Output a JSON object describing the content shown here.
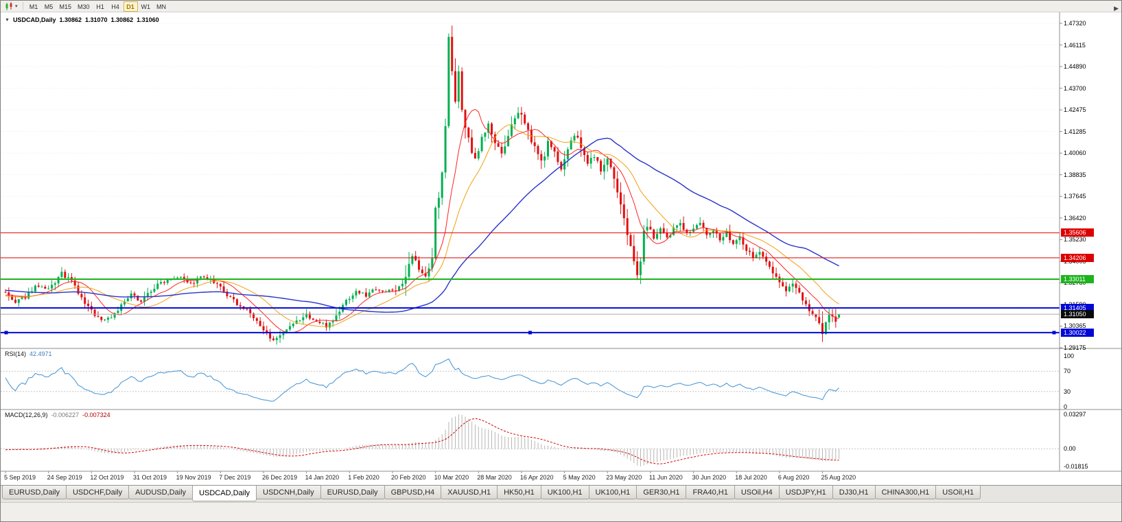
{
  "toolbar": {
    "timeframes": [
      "M1",
      "M5",
      "M15",
      "M30",
      "H1",
      "H4",
      "D1",
      "W1",
      "MN"
    ],
    "active_timeframe": "D1"
  },
  "chart_header": {
    "symbol_label": "USDCAD,Daily",
    "open": "1.30862",
    "high": "1.31070",
    "low": "1.30862",
    "close": "1.31060"
  },
  "price_axis": {
    "ticks": [
      "1.47320",
      "1.46115",
      "1.44890",
      "1.43700",
      "1.42475",
      "1.41285",
      "1.40060",
      "1.38835",
      "1.37645",
      "1.36420",
      "1.35230",
      "1.34005",
      "1.32780",
      "1.31590",
      "1.30365",
      "1.29175"
    ]
  },
  "levels": [
    {
      "price": 1.35606,
      "label": "1.35606",
      "color": "#dd0000",
      "line_width": 1,
      "badge_bg": "#dd0000",
      "handles": false
    },
    {
      "price": 1.34206,
      "label": "1.34206",
      "color": "#dd0000",
      "line_width": 1,
      "badge_bg": "#dd0000",
      "handles": false
    },
    {
      "price": 1.33011,
      "label": "1.33011",
      "color": "#1db31d",
      "line_width": 2,
      "badge_bg": "#1db31d",
      "handles": false
    },
    {
      "price": 1.31405,
      "label": "1.31405",
      "color": "#0008d6",
      "line_width": 2,
      "badge_bg": "#0008d6",
      "handles": false
    },
    {
      "price": 1.30022,
      "label": "1.30022",
      "color": "#0008d6",
      "line_width": 2,
      "badge_bg": "#0008d6",
      "handles": true
    }
  ],
  "current_price": {
    "value": 1.3105,
    "label": "1.31050",
    "badge_bg": "#0a0a0a",
    "line_color": "#aaaaaa"
  },
  "indicators": {
    "rsi": {
      "label": "RSI(14)",
      "period": 14,
      "value": "42.4971",
      "levels": [
        100,
        70,
        30,
        0
      ],
      "line_color": "#4f9ad6"
    },
    "macd": {
      "label": "MACD(12,26,9)",
      "fast": 12,
      "slow": 26,
      "signal": 9,
      "value_main": "-0.006227",
      "value_signal": "-0.007324",
      "axis": [
        "0.03297",
        "0.00",
        "-0.01815"
      ],
      "histogram_color": "#b5b5b5",
      "signal_color": "#d40000"
    }
  },
  "date_axis": {
    "bars_per_label": 13,
    "labels": [
      "5 Sep 2019",
      "24 Sep 2019",
      "12 Oct 2019",
      "31 Oct 2019",
      "19 Nov 2019",
      "7 Dec 2019",
      "26 Dec 2019",
      "14 Jan 2020",
      "1 Feb 2020",
      "20 Feb 2020",
      "10 Mar 2020",
      "28 Mar 2020",
      "16 Apr 2020",
      "5 May 2020",
      "23 May 2020",
      "11 Jun 2020",
      "30 Jun 2020",
      "18 Jul 2020",
      "6 Aug 2020",
      "25 Aug 2020"
    ]
  },
  "tabs": {
    "active_index": 3,
    "items": [
      "EURUSD,Daily",
      "USDCHF,Daily",
      "AUDUSD,Daily",
      "USDCAD,Daily",
      "USDCNH,Daily",
      "EURUSD,Daily",
      "GBPUSD,H4",
      "XAUUSD,H1",
      "HK50,H1",
      "UK100,H1",
      "UK100,H1",
      "GER30,H1",
      "FRA40,H1",
      "USOil,H4",
      "USDJPY,H1",
      "DJ30,H1",
      "CHINA300,H1",
      "USOil,H1"
    ],
    "scroll_icon": "▶"
  },
  "chart_data": {
    "type": "candlestick",
    "title": "USDCAD,Daily",
    "symbol": "USDCAD",
    "timeframe": "Daily",
    "bars_total": 253,
    "bars_per_label": 13,
    "ylim": [
      1.29175,
      1.4732
    ],
    "y_ticks": [
      1.4732,
      1.46115,
      1.4489,
      1.437,
      1.42475,
      1.41285,
      1.4006,
      1.38835,
      1.37645,
      1.3642,
      1.3523,
      1.34005,
      1.3278,
      1.3159,
      1.30365,
      1.29175
    ],
    "x_labels": [
      "5 Sep 2019",
      "24 Sep 2019",
      "12 Oct 2019",
      "31 Oct 2019",
      "19 Nov 2019",
      "7 Dec 2019",
      "26 Dec 2019",
      "14 Jan 2020",
      "1 Feb 2020",
      "20 Feb 2020",
      "10 Mar 2020",
      "28 Mar 2020",
      "16 Apr 2020",
      "5 May 2020",
      "23 May 2020",
      "11 Jun 2020",
      "30 Jun 2020",
      "18 Jul 2020",
      "6 Aug 2020",
      "25 Aug 2020"
    ],
    "ohlc_current": {
      "open": 1.30862,
      "high": 1.3107,
      "low": 1.30862,
      "close": 1.3106
    },
    "up_color": "#00b050",
    "down_color": "#e01010",
    "horizontal_levels": [
      1.35606,
      1.34206,
      1.33011,
      1.31405,
      1.30022
    ],
    "moving_averages": [
      {
        "period": 10,
        "color": "#ff2222",
        "width": 1
      },
      {
        "period": 20,
        "color": "#f0a010",
        "width": 1
      },
      {
        "period": 50,
        "color": "#2633cc",
        "width": 1.4
      }
    ],
    "indicator_panes": [
      {
        "name": "RSI",
        "params": "14",
        "last_value": 42.4971,
        "range": [
          0,
          100
        ],
        "dotted_levels": [
          70,
          30
        ]
      },
      {
        "name": "MACD",
        "params": "12,26,9",
        "last_main": -0.006227,
        "last_signal": -0.007324,
        "axis_max": 0.03297,
        "axis_min": -0.01815
      }
    ],
    "pre_anchors": [
      [
        -55,
        1.323
      ],
      [
        -40,
        1.3288
      ],
      [
        -25,
        1.3242
      ],
      [
        -12,
        1.3186
      ]
    ],
    "anchors": [
      [
        0,
        1.3225
      ],
      [
        3,
        1.3165
      ],
      [
        6,
        1.3205
      ],
      [
        9,
        1.3262
      ],
      [
        13,
        1.3238
      ],
      [
        17,
        1.3332
      ],
      [
        20,
        1.3288
      ],
      [
        23,
        1.3192
      ],
      [
        26,
        1.3122
      ],
      [
        29,
        1.3072
      ],
      [
        32,
        1.3092
      ],
      [
        35,
        1.3152
      ],
      [
        38,
        1.3212
      ],
      [
        41,
        1.3182
      ],
      [
        44,
        1.3238
      ],
      [
        47,
        1.3282
      ],
      [
        50,
        1.3306
      ],
      [
        53,
        1.3322
      ],
      [
        56,
        1.3272
      ],
      [
        59,
        1.3312
      ],
      [
        62,
        1.3292
      ],
      [
        65,
        1.3252
      ],
      [
        68,
        1.3192
      ],
      [
        71,
        1.3152
      ],
      [
        74,
        1.3112
      ],
      [
        77,
        1.3032
      ],
      [
        80,
        1.2978
      ],
      [
        82,
        1.2962
      ],
      [
        85,
        1.3012
      ],
      [
        88,
        1.3062
      ],
      [
        91,
        1.3102
      ],
      [
        94,
        1.3062
      ],
      [
        97,
        1.3042
      ],
      [
        100,
        1.3092
      ],
      [
        103,
        1.3182
      ],
      [
        106,
        1.3232
      ],
      [
        109,
        1.3212
      ],
      [
        112,
        1.3252
      ],
      [
        115,
        1.3232
      ],
      [
        118,
        1.3242
      ],
      [
        121,
        1.3302
      ],
      [
        123,
        1.3432
      ],
      [
        125,
        1.3352
      ],
      [
        127,
        1.3332
      ],
      [
        129,
        1.3412
      ],
      [
        130,
        1.3692
      ],
      [
        131,
        1.3752
      ],
      [
        132,
        1.3902
      ],
      [
        133,
        1.4152
      ],
      [
        134,
        1.4642
      ],
      [
        135,
        1.4482
      ],
      [
        136,
        1.4302
      ],
      [
        137,
        1.4442
      ],
      [
        138,
        1.4232
      ],
      [
        140,
        1.4082
      ],
      [
        142,
        1.3972
      ],
      [
        144,
        1.4092
      ],
      [
        146,
        1.4162
      ],
      [
        148,
        1.4062
      ],
      [
        150,
        1.3992
      ],
      [
        152,
        1.4112
      ],
      [
        154,
        1.4192
      ],
      [
        156,
        1.4242
      ],
      [
        158,
        1.4132
      ],
      [
        160,
        1.4032
      ],
      [
        162,
        1.3952
      ],
      [
        164,
        1.4062
      ],
      [
        166,
        1.4002
      ],
      [
        168,
        1.3932
      ],
      [
        170,
        1.4022
      ],
      [
        172,
        1.4112
      ],
      [
        174,
        1.4042
      ],
      [
        176,
        1.3942
      ],
      [
        178,
        1.4002
      ],
      [
        180,
        1.3902
      ],
      [
        182,
        1.3982
      ],
      [
        184,
        1.3852
      ],
      [
        186,
        1.3702
      ],
      [
        188,
        1.3562
      ],
      [
        190,
        1.3422
      ],
      [
        191,
        1.3332
      ],
      [
        192,
        1.3392
      ],
      [
        193,
        1.3562
      ],
      [
        194,
        1.3612
      ],
      [
        196,
        1.3532
      ],
      [
        198,
        1.3572
      ],
      [
        200,
        1.3522
      ],
      [
        202,
        1.3582
      ],
      [
        204,
        1.3622
      ],
      [
        206,
        1.3562
      ],
      [
        208,
        1.3578
      ],
      [
        210,
        1.3612
      ],
      [
        212,
        1.3548
      ],
      [
        214,
        1.3582
      ],
      [
        216,
        1.3522
      ],
      [
        218,
        1.3558
      ],
      [
        220,
        1.3502
      ],
      [
        222,
        1.3542
      ],
      [
        224,
        1.3472
      ],
      [
        226,
        1.3422
      ],
      [
        228,
        1.3452
      ],
      [
        230,
        1.3392
      ],
      [
        232,
        1.3342
      ],
      [
        234,
        1.3292
      ],
      [
        236,
        1.3232
      ],
      [
        238,
        1.3272
      ],
      [
        240,
        1.3212
      ],
      [
        242,
        1.3152
      ],
      [
        244,
        1.3112
      ],
      [
        246,
        1.3042
      ],
      [
        247,
        1.2997
      ],
      [
        248,
        1.3072
      ],
      [
        249,
        1.3122
      ],
      [
        250,
        1.3082
      ],
      [
        251,
        1.3052
      ],
      [
        252,
        1.3106
      ]
    ]
  }
}
